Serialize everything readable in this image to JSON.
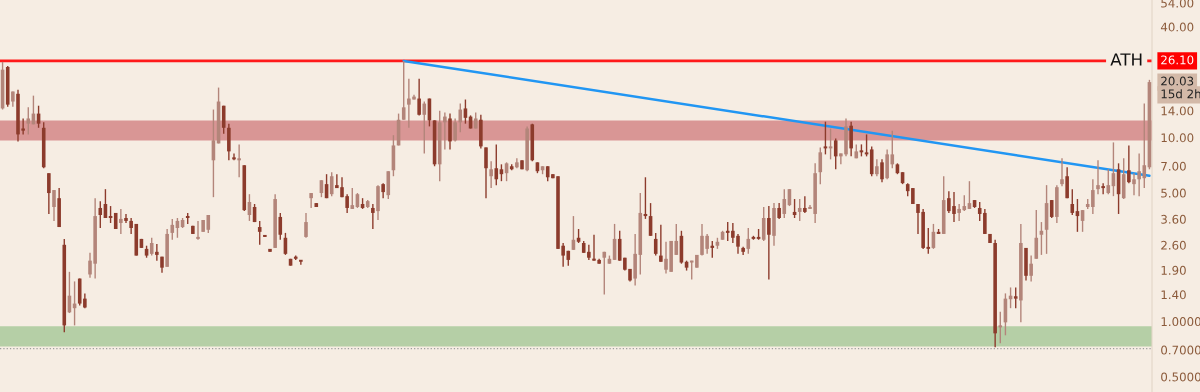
{
  "chart_data": {
    "type": "candlestick",
    "categories": [
      null,
      null,
      null,
      null,
      null,
      null,
      null,
      null,
      null,
      null,
      null,
      null,
      null,
      null,
      null,
      null,
      null,
      null,
      null,
      null,
      null,
      null,
      null,
      null,
      null,
      null,
      null,
      null,
      null,
      null,
      null,
      null,
      null,
      null,
      null,
      null,
      null,
      null,
      null,
      null,
      null,
      null,
      null,
      null,
      null,
      null,
      null,
      null,
      null,
      null,
      null,
      null,
      null,
      null,
      null,
      null,
      null,
      null,
      null,
      null,
      null,
      null,
      null,
      null,
      null,
      null,
      null,
      null,
      null,
      null,
      null,
      null,
      null,
      null,
      null,
      null,
      null,
      null,
      null,
      null,
      null,
      null,
      null,
      null,
      null,
      null,
      null,
      null,
      null,
      null,
      null,
      null,
      null,
      null,
      null,
      null,
      null,
      null,
      null,
      null,
      null,
      null,
      null,
      null,
      null,
      null,
      null,
      null,
      null,
      null,
      null,
      null,
      null,
      null,
      null,
      null,
      null,
      null,
      null,
      null,
      null,
      null,
      null,
      null,
      null,
      null,
      null,
      null,
      null,
      null,
      null,
      null,
      null,
      null,
      null,
      null,
      null,
      null,
      null,
      null,
      null,
      null,
      null,
      null,
      null,
      null,
      null,
      null,
      null,
      null,
      null,
      null,
      null,
      null,
      null,
      null,
      null,
      null,
      null,
      null,
      null,
      null,
      null,
      null,
      null,
      null,
      null,
      null,
      null,
      null,
      null,
      null,
      null,
      null,
      null,
      null,
      null,
      null,
      null,
      null,
      null,
      null,
      null,
      null,
      null,
      null,
      null,
      null,
      null,
      null,
      null,
      null,
      null,
      null,
      null,
      null,
      null,
      null,
      null,
      null,
      null,
      null,
      null,
      null,
      null,
      null,
      null,
      null,
      null,
      null,
      null,
      null,
      null,
      null,
      null,
      null,
      null,
      null,
      null,
      null,
      null,
      null,
      null,
      null
    ],
    "ohlc": [
      [
        14.4,
        25.8,
        14.2,
        23.4
      ],
      [
        24.2,
        24.5,
        14.7,
        15.1
      ],
      [
        15.7,
        17.8,
        14.7,
        17.8
      ],
      [
        17.3,
        18.2,
        9.53,
        10.4
      ],
      [
        11.2,
        12.7,
        10.4,
        10.9
      ],
      [
        11.9,
        14.6,
        10.4,
        12.7
      ],
      [
        11.8,
        16.9,
        11.8,
        13.5
      ],
      [
        13.5,
        14.9,
        11.3,
        11.9
      ],
      [
        11.3,
        12.1,
        6.81,
        6.89
      ],
      [
        6.4,
        6.4,
        3.84,
        4.99
      ],
      [
        4.19,
        5.18,
        3.52,
        5.18
      ],
      [
        4.68,
        5.31,
        3.26,
        3.26
      ],
      [
        2.61,
        2.81,
        0.872,
        0.951
      ],
      [
        1.12,
        1.86,
        1.11,
        1.38
      ],
      [
        1.18,
        1.65,
        0.951,
        1.25
      ],
      [
        1.71,
        1.71,
        1.22,
        1.25
      ],
      [
        1.33,
        1.42,
        1.18,
        1.19
      ],
      [
        1.8,
        2.36,
        1.73,
        2.14
      ],
      [
        2.06,
        4.68,
        1.71,
        3.74
      ],
      [
        4.14,
        4.51,
        3.22,
        3.79
      ],
      [
        4.35,
        5.24,
        3.65,
        3.65
      ],
      [
        3.7,
        4.24,
        3.43,
        3.65
      ],
      [
        3.89,
        3.89,
        3.18,
        3.18
      ],
      [
        3.43,
        4.09,
        2.99,
        3.61
      ],
      [
        3.65,
        3.84,
        3.43,
        3.52
      ],
      [
        3.52,
        3.65,
        2.99,
        3.22
      ],
      [
        3.39,
        3.39,
        2.28,
        2.28
      ],
      [
        2.81,
        2.81,
        2.51,
        2.51
      ],
      [
        2.48,
        2.58,
        2.22,
        2.28
      ],
      [
        2.33,
        2.85,
        2.28,
        2.67
      ],
      [
        2.39,
        2.64,
        2.14,
        2.3
      ],
      [
        2.25,
        2.25,
        1.84,
        1.96
      ],
      [
        1.98,
        3.18,
        1.98,
        2.99
      ],
      [
        3.03,
        3.61,
        2.78,
        3.35
      ],
      [
        3.22,
        3.65,
        2.85,
        3.52
      ],
      [
        3.26,
        3.65,
        3.22,
        3.56
      ],
      [
        3.74,
        3.89,
        3.39,
        3.65
      ],
      [
        3.31,
        3.31,
        2.99,
        2.99
      ],
      [
        2.81,
        3.52,
        2.78,
        2.85
      ],
      [
        3.07,
        3.56,
        3.07,
        3.56
      ],
      [
        3.15,
        3.79,
        3.03,
        3.79
      ],
      [
        7.52,
        14.2,
        4.74,
        9.65
      ],
      [
        9.29,
        18.7,
        9.29,
        15.7
      ],
      [
        14.9,
        14.9,
        10.5,
        11.3
      ],
      [
        11.3,
        11.9,
        7.52,
        8.41
      ],
      [
        7.71,
        8.2,
        7.52,
        7.61
      ],
      [
        7.52,
        9.18,
        6.08,
        7.71
      ],
      [
        7.07,
        7.07,
        3.98,
        4.03
      ],
      [
        3.79,
        4.92,
        3.52,
        4.46
      ],
      [
        4.19,
        4.35,
        3.47,
        3.47
      ],
      [
        3.26,
        3.52,
        2.61,
        3.07
      ],
      [
        2.92,
        2.92,
        2.88,
        2.88
      ],
      [
        2.48,
        2.48,
        2.39,
        2.39
      ],
      [
        2.51,
        4.92,
        2.51,
        4.63
      ],
      [
        3.7,
        3.89,
        2.78,
        2.96
      ],
      [
        2.85,
        3.03,
        2.3,
        2.33
      ],
      [
        2.19,
        2.19,
        2.01,
        2.01
      ],
      [
        2.25,
        2.28,
        2.16,
        2.19
      ],
      [
        2.14,
        2.14,
        2.03,
        2.11
      ],
      [
        2.88,
        3.89,
        2.85,
        3.47
      ],
      [
        4.68,
        4.99,
        4.14,
        4.99
      ],
      [
        4.4,
        4.4,
        4.19,
        4.19
      ],
      [
        4.99,
        5.86,
        4.74,
        5.86
      ],
      [
        5.58,
        6.32,
        4.68,
        4.68
      ],
      [
        4.92,
        6.48,
        4.8,
        6.16
      ],
      [
        5.51,
        6.32,
        5.31,
        5.31
      ],
      [
        5.37,
        6.08,
        4.74,
        4.74
      ],
      [
        4.8,
        4.92,
        3.89,
        4.14
      ],
      [
        4.09,
        5.31,
        4.09,
        4.29
      ],
      [
        4.19,
        4.99,
        4.14,
        4.92
      ],
      [
        4.35,
        4.68,
        4.09,
        4.14
      ],
      [
        4.19,
        4.57,
        4.14,
        4.51
      ],
      [
        4.14,
        4.35,
        3.18,
        3.89
      ],
      [
        3.98,
        5.51,
        3.56,
        5.44
      ],
      [
        5.58,
        5.65,
        4.68,
        5.05
      ],
      [
        4.86,
        6.56,
        4.63,
        6.56
      ],
      [
        6.64,
        10.3,
        6.16,
        9.06
      ],
      [
        9.06,
        13.5,
        9.06,
        12.5
      ],
      [
        12.5,
        26.1,
        12.5,
        14.6
      ],
      [
        15.1,
        20.9,
        11.3,
        16.3
      ],
      [
        16.1,
        17.1,
        16.1,
        16.7
      ],
      [
        16.3,
        20.9,
        13.2,
        13.3
      ],
      [
        13.3,
        15.7,
        8.2,
        15.3
      ],
      [
        16.3,
        16.3,
        11.5,
        12.4
      ],
      [
        12.4,
        12.4,
        6.98,
        7.15
      ],
      [
        7.15,
        14.0,
        5.79,
        12.1
      ],
      [
        12.1,
        13.7,
        8.62,
        13.0
      ],
      [
        12.7,
        13.5,
        8.62,
        9.53
      ],
      [
        9.65,
        12.7,
        9.53,
        12.1
      ],
      [
        12.1,
        15.3,
        10.7,
        14.2
      ],
      [
        14.4,
        16.1,
        11.9,
        12.8
      ],
      [
        13.0,
        13.2,
        11.2,
        11.2
      ],
      [
        11.2,
        13.7,
        11.2,
        12.7
      ],
      [
        12.5,
        13.3,
        8.73,
        8.95
      ],
      [
        8.84,
        8.84,
        4.68,
        6.81
      ],
      [
        6.16,
        7.43,
        5.31,
        6.72
      ],
      [
        6.81,
        9.18,
        5.51,
        5.93
      ],
      [
        6.72,
        7.15,
        5.79,
        6.32
      ],
      [
        6.4,
        7.33,
        5.79,
        7.24
      ],
      [
        6.98,
        7.15,
        6.64,
        6.72
      ],
      [
        6.89,
        7.71,
        6.81,
        7.33
      ],
      [
        7.52,
        7.52,
        6.72,
        6.72
      ],
      [
        6.64,
        11.5,
        6.56,
        11.2
      ],
      [
        11.8,
        11.9,
        7.43,
        7.52
      ],
      [
        7.33,
        7.33,
        6.4,
        6.56
      ],
      [
        6.64,
        6.98,
        6.32,
        6.98
      ],
      [
        6.98,
        6.98,
        5.79,
        6.08
      ],
      [
        6.32,
        6.32,
        6.01,
        6.01
      ],
      [
        6.16,
        6.16,
        2.48,
        2.48
      ],
      [
        2.58,
        2.67,
        1.98,
        2.28
      ],
      [
        2.42,
        2.42,
        2.01,
        2.16
      ],
      [
        2.45,
        3.74,
        2.45,
        2.78
      ],
      [
        2.85,
        3.18,
        2.67,
        2.71
      ],
      [
        2.67,
        2.74,
        2.36,
        2.36
      ],
      [
        2.39,
        2.61,
        2.16,
        2.22
      ],
      [
        2.16,
        2.96,
        2.14,
        2.14
      ],
      [
        2.16,
        2.19,
        2.06,
        2.06
      ],
      [
        2.22,
        2.39,
        1.4,
        2.39
      ],
      [
        2.06,
        2.28,
        2.06,
        2.19
      ],
      [
        2.16,
        3.39,
        2.16,
        2.81
      ],
      [
        2.81,
        3.11,
        2.14,
        2.14
      ],
      [
        2.22,
        2.22,
        1.89,
        1.91
      ],
      [
        1.93,
        1.93,
        1.65,
        1.67
      ],
      [
        1.71,
        2.99,
        1.57,
        2.33
      ],
      [
        2.3,
        4.99,
        1.8,
        3.89
      ],
      [
        3.84,
        6.08,
        3.61,
        3.74
      ],
      [
        3.74,
        4.4,
        2.92,
        2.92
      ],
      [
        2.81,
        3.03,
        2.28,
        2.33
      ],
      [
        2.28,
        3.35,
        2.11,
        2.11
      ],
      [
        1.91,
        2.71,
        1.82,
        2.19
      ],
      [
        1.86,
        2.74,
        1.86,
        2.74
      ],
      [
        2.3,
        3.39,
        2.3,
        2.74
      ],
      [
        2.92,
        3.11,
        2.06,
        2.09
      ],
      [
        2.11,
        2.14,
        1.89,
        1.96
      ],
      [
        2.09,
        2.14,
        1.69,
        2.14
      ],
      [
        1.96,
        2.3,
        1.96,
        2.3
      ],
      [
        2.3,
        3.39,
        2.28,
        2.92
      ],
      [
        2.48,
        2.99,
        2.33,
        2.92
      ],
      [
        2.58,
        2.74,
        2.22,
        2.51
      ],
      [
        2.58,
        2.85,
        2.48,
        2.71
      ],
      [
        2.78,
        3.11,
        2.78,
        3.07
      ],
      [
        3.11,
        3.47,
        2.74,
        3.03
      ],
      [
        3.11,
        3.43,
        2.67,
        2.85
      ],
      [
        2.92,
        2.99,
        2.33,
        2.55
      ],
      [
        2.51,
        2.55,
        2.3,
        2.39
      ],
      [
        2.48,
        3.22,
        2.33,
        2.81
      ],
      [
        2.85,
        2.92,
        2.78,
        2.81
      ],
      [
        2.85,
        3.18,
        2.78,
        2.81
      ],
      [
        2.78,
        4.19,
        2.74,
        3.65
      ],
      [
        3.65,
        4.24,
        1.69,
        2.96
      ],
      [
        2.92,
        4.4,
        2.58,
        4.14
      ],
      [
        4.14,
        4.4,
        3.61,
        3.65
      ],
      [
        3.84,
        5.24,
        3.65,
        4.63
      ],
      [
        4.29,
        5.24,
        4.24,
        5.24
      ],
      [
        3.94,
        4.63,
        3.65,
        3.79
      ],
      [
        3.94,
        4.63,
        3.52,
        4.14
      ],
      [
        4.14,
        4.8,
        3.89,
        3.94
      ],
      [
        4.09,
        4.29,
        4.09,
        4.19
      ],
      [
        3.84,
        7.24,
        3.43,
        6.4
      ],
      [
        6.48,
        8.84,
        5.58,
        8.31
      ],
      [
        8.84,
        12.2,
        8.1,
        8.73
      ],
      [
        8.73,
        11.2,
        7.61,
        8.95
      ],
      [
        9.65,
        9.89,
        6.72,
        7.9
      ],
      [
        7.9,
        8.2,
        7.15,
        8.2
      ],
      [
        8.1,
        12.7,
        7.9,
        11.5
      ],
      [
        11.6,
        12.2,
        7.9,
        8.73
      ],
      [
        7.71,
        9.18,
        7.71,
        8.41
      ],
      [
        8.52,
        9.18,
        7.9,
        8.31
      ],
      [
        8.2,
        10.4,
        7.9,
        8.1
      ],
      [
        8.62,
        8.95,
        6.16,
        6.32
      ],
      [
        6.32,
        7.61,
        6.16,
        6.98
      ],
      [
        7.33,
        7.61,
        5.72,
        5.93
      ],
      [
        6.01,
        8.62,
        5.93,
        8.1
      ],
      [
        7.15,
        10.9,
        6.81,
        8.1
      ],
      [
        7.15,
        7.24,
        6.32,
        6.4
      ],
      [
        6.48,
        6.48,
        5.58,
        5.65
      ],
      [
        5.58,
        5.65,
        4.8,
        5.11
      ],
      [
        5.31,
        5.31,
        4.35,
        4.35
      ],
      [
        4.35,
        4.35,
        2.99,
        3.89
      ],
      [
        3.94,
        4.09,
        2.48,
        2.51
      ],
      [
        2.51,
        3.22,
        2.33,
        2.48
      ],
      [
        2.51,
        3.39,
        2.48,
        3.07
      ],
      [
        3.07,
        3.18,
        2.99,
        2.99
      ],
      [
        2.99,
        6.16,
        2.99,
        4.57
      ],
      [
        4.68,
        5.11,
        3.89,
        3.98
      ],
      [
        4.24,
        5.05,
        3.47,
        3.84
      ],
      [
        3.89,
        4.35,
        3.52,
        4.09
      ],
      [
        4.03,
        4.86,
        3.98,
        4.24
      ],
      [
        4.09,
        5.79,
        4.09,
        4.4
      ],
      [
        4.57,
        4.57,
        4.14,
        4.19
      ],
      [
        4.14,
        4.46,
        3.52,
        3.84
      ],
      [
        3.89,
        4.09,
        2.99,
        2.99
      ],
      [
        2.99,
        2.99,
        2.67,
        2.67
      ],
      [
        2.67,
        2.78,
        0.723,
        0.861
      ],
      [
        0.928,
        1.13,
        0.76,
        0.94
      ],
      [
        0.988,
        1.42,
        0.84,
        1.33
      ],
      [
        1.32,
        1.53,
        1.18,
        1.38
      ],
      [
        1.37,
        1.53,
        1.18,
        1.33
      ],
      [
        1.3,
        3.39,
        0.988,
        2.67
      ],
      [
        2.51,
        2.51,
        1.67,
        1.77
      ],
      [
        1.77,
        2.28,
        1.65,
        2.06
      ],
      [
        2.19,
        4.03,
        2.19,
        2.85
      ],
      [
        2.96,
        3.47,
        2.3,
        3.11
      ],
      [
        3.15,
        5.51,
        2.33,
        4.4
      ],
      [
        4.57,
        4.57,
        3.65,
        3.7
      ],
      [
        3.7,
        5.51,
        3.43,
        5.37
      ],
      [
        5.58,
        7.71,
        5.44,
        5.93
      ],
      [
        6.16,
        6.89,
        4.68,
        4.68
      ],
      [
        4.35,
        5.24,
        3.79,
        3.89
      ],
      [
        3.98,
        4.63,
        3.07,
        3.74
      ],
      [
        3.52,
        4.03,
        3.07,
        4.03
      ],
      [
        4.19,
        4.63,
        4.09,
        4.35
      ],
      [
        4.19,
        5.93,
        3.84,
        5.18
      ],
      [
        5.24,
        7.52,
        4.92,
        5.51
      ],
      [
        5.37,
        5.65,
        4.92,
        5.31
      ],
      [
        4.99,
        6.72,
        4.92,
        5.51
      ],
      [
        5.44,
        9.41,
        4.8,
        6.4
      ],
      [
        6.72,
        7.24,
        3.84,
        4.92
      ],
      [
        4.68,
        7.71,
        4.63,
        6.32
      ],
      [
        6.64,
        9.06,
        5.65,
        5.72
      ],
      [
        5.58,
        6.4,
        4.86,
        5.93
      ],
      [
        5.93,
        8.2,
        4.8,
        6.56
      ],
      [
        6.01,
        15.3,
        5.31,
        7.07
      ],
      [
        6.89,
        20.6,
        6.72,
        20.03
      ]
    ],
    "colors": [
      "#b3857a",
      "#8c3b2c",
      "#b3857a",
      "#8c3b2c",
      "#8c3b2c",
      "#b3857a",
      "#b3857a",
      "#8c3b2c",
      "#8c3b2c",
      "#8c3b2c",
      "#b3857a",
      "#8c3b2c",
      "#8c3b2c",
      "#b3857a",
      "#b3857a",
      "#8c3b2c",
      "#8c3b2c",
      "#b3857a",
      "#b3857a",
      "#8c3b2c",
      "#8c3b2c",
      "#8c3b2c",
      "#8c3b2c",
      "#b3857a",
      "#8c3b2c",
      "#8c3b2c",
      "#8c3b2c",
      "#8c3b2c",
      "#8c3b2c",
      "#b3857a",
      "#8c3b2c",
      "#8c3b2c",
      "#b3857a",
      "#b3857a",
      "#b3857a",
      "#b3857a",
      "#8c3b2c",
      "#8c3b2c",
      "#b3857a",
      "#b3857a",
      "#b3857a",
      "#b3857a",
      "#b3857a",
      "#8c3b2c",
      "#8c3b2c",
      "#8c3b2c",
      "#b3857a",
      "#8c3b2c",
      "#b3857a",
      "#8c3b2c",
      "#8c3b2c",
      "#8c3b2c",
      "#8c3b2c",
      "#b3857a",
      "#8c3b2c",
      "#8c3b2c",
      "#8c3b2c",
      "#8c3b2c",
      "#8c3b2c",
      "#b3857a",
      "#b3857a",
      "#8c3b2c",
      "#b3857a",
      "#8c3b2c",
      "#b3857a",
      "#8c3b2c",
      "#8c3b2c",
      "#8c3b2c",
      "#b3857a",
      "#b3857a",
      "#8c3b2c",
      "#b3857a",
      "#8c3b2c",
      "#b3857a",
      "#8c3b2c",
      "#b3857a",
      "#b3857a",
      "#b3857a",
      "#b3857a",
      "#b3857a",
      "#b3857a",
      "#8c3b2c",
      "#b3857a",
      "#8c3b2c",
      "#8c3b2c",
      "#b3857a",
      "#b3857a",
      "#8c3b2c",
      "#b3857a",
      "#b3857a",
      "#8c3b2c",
      "#8c3b2c",
      "#b3857a",
      "#8c3b2c",
      "#8c3b2c",
      "#b3857a",
      "#8c3b2c",
      "#8c3b2c",
      "#b3857a",
      "#8c3b2c",
      "#b3857a",
      "#8c3b2c",
      "#b3857a",
      "#8c3b2c",
      "#8c3b2c",
      "#b3857a",
      "#8c3b2c",
      "#8c3b2c",
      "#8c3b2c",
      "#8c3b2c",
      "#8c3b2c",
      "#b3857a",
      "#8c3b2c",
      "#8c3b2c",
      "#8c3b2c",
      "#8c3b2c",
      "#8c3b2c",
      "#b3857a",
      "#b3857a",
      "#b3857a",
      "#8c3b2c",
      "#8c3b2c",
      "#8c3b2c",
      "#b3857a",
      "#b3857a",
      "#8c3b2c",
      "#8c3b2c",
      "#8c3b2c",
      "#8c3b2c",
      "#b3857a",
      "#b3857a",
      "#b3857a",
      "#8c3b2c",
      "#8c3b2c",
      "#b3857a",
      "#b3857a",
      "#b3857a",
      "#b3857a",
      "#8c3b2c",
      "#b3857a",
      "#b3857a",
      "#8c3b2c",
      "#8c3b2c",
      "#8c3b2c",
      "#8c3b2c",
      "#b3857a",
      "#8c3b2c",
      "#8c3b2c",
      "#b3857a",
      "#8c3b2c",
      "#b3857a",
      "#8c3b2c",
      "#b3857a",
      "#b3857a",
      "#8c3b2c",
      "#b3857a",
      "#8c3b2c",
      "#b3857a",
      "#b3857a",
      "#b3857a",
      "#8c3b2c",
      "#b3857a",
      "#8c3b2c",
      "#b3857a",
      "#b3857a",
      "#8c3b2c",
      "#b3857a",
      "#8c3b2c",
      "#8c3b2c",
      "#8c3b2c",
      "#b3857a",
      "#8c3b2c",
      "#b3857a",
      "#b3857a",
      "#8c3b2c",
      "#8c3b2c",
      "#8c3b2c",
      "#8c3b2c",
      "#8c3b2c",
      "#8c3b2c",
      "#8c3b2c",
      "#b3857a",
      "#8c3b2c",
      "#b3857a",
      "#8c3b2c",
      "#8c3b2c",
      "#b3857a",
      "#b3857a",
      "#b3857a",
      "#8c3b2c",
      "#8c3b2c",
      "#8c3b2c",
      "#8c3b2c",
      "#8c3b2c",
      "#b3857a",
      "#b3857a",
      "#b3857a",
      "#8c3b2c",
      "#b3857a",
      "#8c3b2c",
      "#b3857a",
      "#b3857a",
      "#b3857a",
      "#b3857a",
      "#8c3b2c",
      "#b3857a",
      "#b3857a",
      "#8c3b2c",
      "#8c3b2c",
      "#8c3b2c",
      "#b3857a",
      "#b3857a",
      "#b3857a",
      "#b3857a",
      "#8c3b2c",
      "#b3857a",
      "#b3857a",
      "#8c3b2c",
      "#b3857a",
      "#8c3b2c",
      "#b3857a",
      "#b3857a",
      "#b3857a",
      "#b3857a"
    ],
    "series": [
      {
        "type": "line",
        "color": "#2196f3",
        "values": [
          null,
          null,
          null,
          null,
          null,
          null,
          null,
          null,
          null,
          null,
          null,
          null,
          null,
          null,
          null,
          null,
          null,
          null,
          null,
          null,
          null,
          null,
          null,
          null,
          null,
          null,
          null,
          null,
          null,
          null,
          null,
          null,
          null,
          null,
          null,
          null,
          null,
          null,
          null,
          null,
          null,
          null,
          null,
          null,
          null,
          null,
          null,
          null,
          null,
          null,
          null,
          null,
          null,
          null,
          null,
          null,
          null,
          null,
          null,
          null,
          null,
          null,
          null,
          null,
          null,
          null,
          null,
          null,
          null,
          null,
          null,
          null,
          null,
          null,
          null,
          null,
          null,
          null,
          26.1,
          null,
          null,
          null,
          null,
          null,
          null,
          null,
          null,
          null,
          null,
          null,
          null,
          null,
          null,
          null,
          null,
          null,
          null,
          null,
          null,
          null,
          null,
          null,
          null,
          null,
          null,
          null,
          null,
          null,
          null,
          null,
          null,
          null,
          null,
          null,
          null,
          null,
          null,
          null,
          null,
          null,
          null,
          null,
          null,
          null,
          null,
          null,
          null,
          null,
          null,
          null,
          null,
          null,
          null,
          null,
          null,
          null,
          null,
          null,
          null,
          null,
          null,
          null,
          null,
          null,
          null,
          null,
          null,
          null,
          null,
          null,
          null,
          null,
          null,
          null,
          null,
          null,
          null,
          null,
          null,
          null,
          null,
          null,
          null,
          null,
          null,
          null,
          null,
          null,
          null,
          null,
          null,
          null,
          null,
          null,
          null,
          null,
          null,
          null,
          null,
          null,
          null,
          null,
          null,
          null,
          null,
          null,
          null,
          null,
          null,
          null,
          null,
          null,
          null,
          null,
          null,
          null,
          null,
          null,
          null,
          null,
          null,
          null,
          null,
          null,
          null,
          null,
          null,
          null,
          null,
          null,
          null,
          null,
          null,
          null,
          null,
          null,
          null,
          null,
          null,
          null,
          null,
          null,
          null,
          6.2
        ]
      }
    ],
    "ylim": [
      0.413,
      56
    ],
    "yticks": [
      {
        "value": 0.5,
        "label": "0.5000"
      },
      {
        "value": 0.7,
        "label": "0.7000"
      },
      {
        "value": 1,
        "label": "1.0000"
      },
      {
        "value": 1.4,
        "label": "1.40"
      },
      {
        "value": 1.9,
        "label": "1.90"
      },
      {
        "value": 2.6,
        "label": "2.60"
      },
      {
        "value": 3.6,
        "label": "3.60"
      },
      {
        "value": 5,
        "label": "5.00"
      },
      {
        "value": 7,
        "label": "7.00"
      },
      {
        "value": 10,
        "label": "10.00"
      },
      {
        "value": 14,
        "label": "14.00"
      },
      {
        "value": 40,
        "label": "40.00"
      },
      {
        "value": 54,
        "label": "54.00"
      }
    ],
    "log": "y",
    "tick_labels": "y",
    "bands": [
      {
        "axis": "y",
        "from": 0.73,
        "to": 0.94,
        "color": "#b5cfa6"
      },
      {
        "axis": "y",
        "from": 9.64,
        "to": 12.4,
        "color": "#d99695"
      }
    ],
    "ref_lines": [
      {
        "axis": "y",
        "value": 26.1,
        "label": "ATH",
        "color": "#ff1a1a",
        "line_style": "solid"
      },
      {
        "axis": "y",
        "value": 0.71,
        "color": "#9e9e9e",
        "line_style": "dotted"
      }
    ],
    "annotations": [
      "26.10",
      "20.03",
      "15d 2h"
    ]
  }
}
